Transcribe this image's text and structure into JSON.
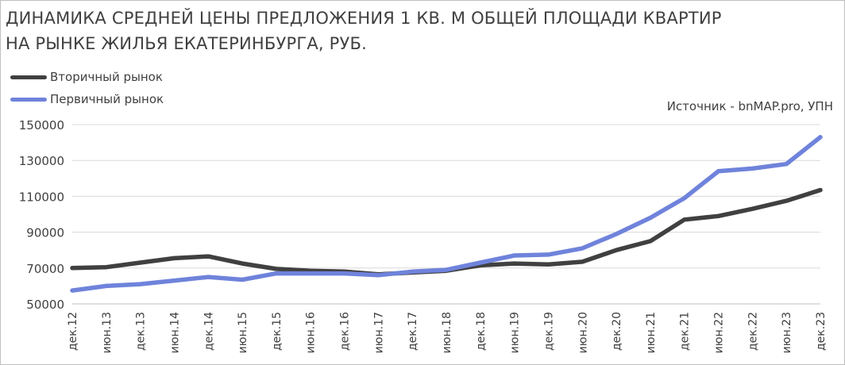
{
  "chart_data": {
    "type": "line",
    "title_lines": [
      "ДИНАМИКА СРЕДНЕЙ ЦЕНЫ ПРЕДЛОЖЕНИЯ 1 КВ. М ОБЩЕЙ ПЛОЩАДИ КВАРТИР",
      "НА РЫНКЕ  ЖИЛЬЯ ЕКАТЕРИНБУРГА,  РУБ."
    ],
    "source": "Источник - bnMAP.pro, УПН",
    "ylim": [
      50000,
      150000
    ],
    "y_ticks": [
      "50000",
      "70000",
      "90000",
      "110000",
      "130000",
      "150000"
    ],
    "grid": "horizontal",
    "legend_position": "top-left",
    "x_tick_labels": [
      "дек.12",
      "июн.13",
      "дек.13",
      "июн.14",
      "дек.14",
      "июн.15",
      "дек.15",
      "июн.16",
      "дек.16",
      "июн.17",
      "дек.17",
      "июн.18",
      "дек.18",
      "июн.19",
      "дек.19",
      "июн.20",
      "дек.20",
      "июн.21",
      "дек.21",
      "июн.22",
      "дек.22",
      "июн.23",
      "дек.23"
    ],
    "series": [
      {
        "name": "Вторичный рынок",
        "color": "#404040",
        "points": [
          [
            "дек.12",
            70000
          ],
          [
            "июн.13",
            70500
          ],
          [
            "дек.13",
            73000
          ],
          [
            "июн.14",
            75500
          ],
          [
            "дек.14",
            76500
          ],
          [
            "июн.15",
            72500
          ],
          [
            "дек.15",
            69500
          ],
          [
            "июн.16",
            68500
          ],
          [
            "дек.16",
            68000
          ],
          [
            "июн.17",
            66500
          ],
          [
            "дек.17",
            67500
          ],
          [
            "июн.18",
            68500
          ],
          [
            "дек.18",
            71500
          ],
          [
            "июн.19",
            72500
          ],
          [
            "дек.19",
            72000
          ],
          [
            "июн.20",
            73500
          ],
          [
            "дек.20",
            80000
          ],
          [
            "июн.21",
            85000
          ],
          [
            "дек.21",
            97000
          ],
          [
            "июн.22",
            99000
          ],
          [
            "дек.22",
            103000
          ],
          [
            "июн.23",
            107500
          ],
          [
            "дек.23",
            113500
          ]
        ]
      },
      {
        "name": "Первичный рынок",
        "color": "#6f83db",
        "points": [
          [
            "дек.12",
            57500
          ],
          [
            "июн.13",
            60000
          ],
          [
            "дек.13",
            61000
          ],
          [
            "июн.14",
            63000
          ],
          [
            "дек.14",
            65000
          ],
          [
            "июн.15",
            63500
          ],
          [
            "дек.15",
            67000
          ],
          [
            "июн.16",
            67000
          ],
          [
            "дек.16",
            67000
          ],
          [
            "июн.17",
            66000
          ],
          [
            "дек.17",
            68000
          ],
          [
            "июн.18",
            69000
          ],
          [
            "дек.18",
            73000
          ],
          [
            "июн.19",
            77000
          ],
          [
            "дек.19",
            77500
          ],
          [
            "июн.20",
            81000
          ],
          [
            "дек.20",
            89000
          ],
          [
            "июн.21",
            98000
          ],
          [
            "дек.21",
            109000
          ],
          [
            "июн.22",
            124000
          ],
          [
            "дек.22",
            125500
          ],
          [
            "июн.23",
            128000
          ],
          [
            "дек.23",
            143000
          ]
        ]
      }
    ]
  }
}
